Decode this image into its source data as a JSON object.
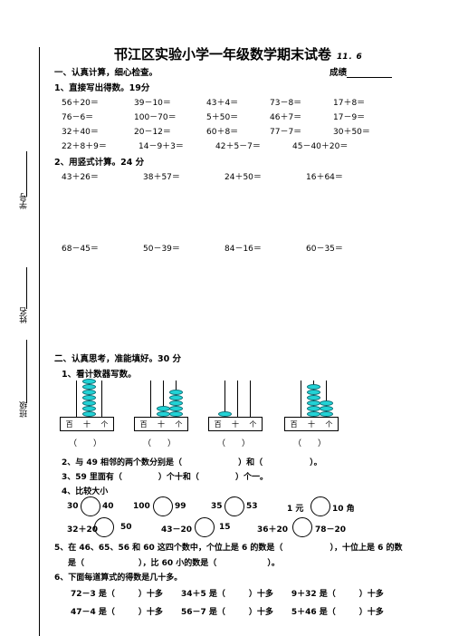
{
  "header": {
    "title": "邗江区实验小学一年级数学期末试卷",
    "date": "11．6",
    "intro": "一、认真计算，细心检查。",
    "score_label": "成绩"
  },
  "side": {
    "xuehao": "学号",
    "xingming": "姓名",
    "banji": "班级"
  },
  "q1": {
    "title": "1、直接写出得数。19分",
    "rows": [
      [
        "56＋20＝",
        "39－10＝",
        "43＋4＝",
        "73－8＝",
        "17＋8＝"
      ],
      [
        "76－6＝",
        "100－70＝",
        "5＋50＝",
        "46＋7＝",
        "17－9＝"
      ],
      [
        "32＋40＝",
        "20－12＝",
        "60＋8＝",
        "77－7＝",
        "30＋50＝"
      ],
      [
        "22＋8＋9＝",
        "14－9＋3＝",
        "42＋5－7＝",
        "45－40＋20＝"
      ]
    ]
  },
  "q2": {
    "title": "2、用竖式计算。24 分",
    "row1": [
      "43＋26＝",
      "38＋57＝",
      "24＋50＝",
      "16＋64＝"
    ],
    "row2": [
      "68－45＝",
      "50－39＝",
      "84－16＝",
      "60－35＝"
    ]
  },
  "part2": {
    "title": "二、认真思考，准能填好。30 分",
    "q1": "1、看计数器写数。",
    "abacus_label": [
      "百",
      "十",
      "个"
    ],
    "abacus_blank": "（　　）",
    "abacus_beads": [
      [
        0,
        7,
        0
      ],
      [
        0,
        2,
        5
      ],
      [
        1,
        0,
        0
      ],
      [
        0,
        6,
        3
      ]
    ],
    "q2a": "2、与 49 相邻的两个数分别是（",
    "q2b": "）和（",
    "q2c": "）。",
    "q3a": "3、59 里面有（",
    "q3b": "）个十和（",
    "q3c": "）个一。",
    "q4": "4、比较大小",
    "cmp1": [
      "30",
      "40",
      "100",
      "99",
      "35",
      "53",
      "1 元",
      "10 角"
    ],
    "cmp2": [
      "32＋20",
      "50",
      "43－20",
      "15",
      "36＋20",
      "78－20"
    ],
    "q5a": "5、在 46、65、56 和 60 这四个数中，个位上是 6 的数是（",
    "q5b": "），十位上是 6 的数",
    "q5c": "是（",
    "q5d": "），比 60 小的数是（",
    "q5e": "）。",
    "q6": "6、下面每道算式的得数是几十多。",
    "q6_rows": [
      [
        "72－3 是（",
        "）十多",
        "34＋5 是（",
        "）十多",
        "9＋32 是（",
        "）十多"
      ],
      [
        "47－4 是（",
        "）十多",
        "56－7 是（",
        "）十多",
        "5＋46 是（",
        "）十多"
      ]
    ]
  }
}
